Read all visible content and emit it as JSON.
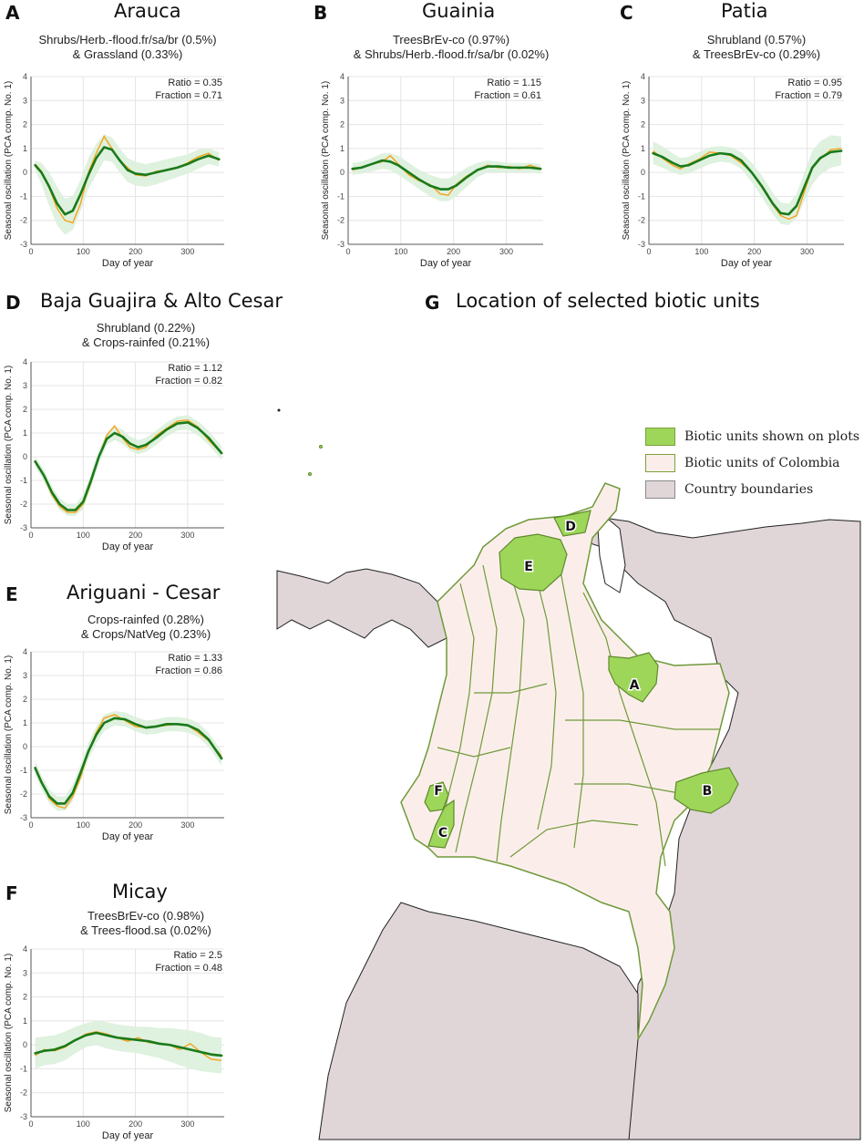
{
  "panels": [
    {
      "id": "A",
      "letter": "A",
      "title": "Arauca",
      "subtitle_line1": "Shrubs/Herb.-flood.fr/sa/br (0.5%)",
      "subtitle_line2": "& Grassland (0.33%)",
      "ratio_text": "Ratio  = 0.35",
      "fraction_text": "Fraction = 0.71"
    },
    {
      "id": "B",
      "letter": "B",
      "title": "Guainia",
      "subtitle_line1": "TreesBrEv-co (0.97%)",
      "subtitle_line2": "& Shrubs/Herb.-flood.fr/sa/br (0.02%)",
      "ratio_text": "Ratio  = 1.15",
      "fraction_text": "Fraction = 0.61"
    },
    {
      "id": "C",
      "letter": "C",
      "title": "Patia",
      "subtitle_line1": "Shrubland (0.57%)",
      "subtitle_line2": "& TreesBrEv-co (0.29%)",
      "ratio_text": "Ratio  = 0.95",
      "fraction_text": "Fraction = 0.79"
    },
    {
      "id": "D",
      "letter": "D",
      "title": "Baja Guajira & Alto Cesar",
      "subtitle_line1": "Shrubland (0.22%)",
      "subtitle_line2": "& Crops-rainfed (0.21%)",
      "ratio_text": "Ratio  = 1.12",
      "fraction_text": "Fraction = 0.82"
    },
    {
      "id": "E",
      "letter": "E",
      "title": "Ariguani - Cesar",
      "subtitle_line1": "Crops-rainfed (0.28%)",
      "subtitle_line2": "& Crops/NatVeg (0.23%)",
      "ratio_text": "Ratio  = 1.33",
      "fraction_text": "Fraction = 0.86"
    },
    {
      "id": "F",
      "letter": "F",
      "title": "Micay",
      "subtitle_line1": "TreesBrEv-co (0.98%)",
      "subtitle_line2": "& Trees-flood.sa (0.02%)",
      "ratio_text": "Ratio  = 2.5",
      "fraction_text": "Fraction = 0.48"
    }
  ],
  "axis_text": {
    "ylabel": "Seasonal oscillation (PCA comp. No. 1)",
    "xlabel": "Day of year",
    "xticks": [
      "0",
      "100",
      "200",
      "300"
    ],
    "yticks": [
      "4",
      "3",
      "2",
      "1",
      "0",
      "-1",
      "-2",
      "-3"
    ]
  },
  "map": {
    "letter": "G",
    "title": "Location of selected biotic units",
    "legend": [
      {
        "label": "Biotic units shown on plots",
        "color": "#9ed65a"
      },
      {
        "label": "Biotic units of Colombia",
        "color": "#fbeeea"
      },
      {
        "label": "Country boundaries",
        "color": "#e0d6d8"
      }
    ],
    "unit_labels": [
      "A",
      "B",
      "C",
      "D",
      "E",
      "F"
    ]
  },
  "colors": {
    "smooth_line": "#1a7a1a",
    "raw_line": "#f5a31a",
    "band": "#dcefdc",
    "unit_highlight": "#9ed65a",
    "unit_fill": "#fbeeea",
    "border": "#6f9a3a",
    "country": "#e0d6d8"
  },
  "chart_data": [
    {
      "type": "line",
      "panel": "A",
      "xlabel": "Day of year",
      "ylabel": "Seasonal oscillation (PCA comp. No. 1)",
      "xlim": [
        0,
        370
      ],
      "ylim": [
        -3,
        4
      ],
      "grid": true,
      "x": [
        8,
        20,
        35,
        50,
        65,
        80,
        95,
        110,
        125,
        140,
        155,
        170,
        185,
        200,
        220,
        240,
        260,
        280,
        300,
        320,
        340,
        360
      ],
      "series": [
        {
          "role": "smooth",
          "values": [
            0.3,
            0.0,
            -0.6,
            -1.3,
            -1.75,
            -1.6,
            -0.9,
            -0.1,
            0.6,
            1.05,
            0.95,
            0.5,
            0.1,
            -0.05,
            -0.1,
            0.0,
            0.1,
            0.2,
            0.35,
            0.55,
            0.7,
            0.55
          ]
        },
        {
          "role": "raw",
          "values": [
            0.35,
            0.05,
            -0.65,
            -1.5,
            -2.0,
            -2.1,
            -1.3,
            0.0,
            0.8,
            1.5,
            1.0,
            0.5,
            0.2,
            -0.1,
            -0.15,
            0.05,
            0.1,
            0.2,
            0.4,
            0.65,
            0.8,
            0.5
          ]
        },
        {
          "role": "band_upper",
          "values": [
            0.5,
            0.4,
            0.0,
            -0.6,
            -1.1,
            -1.0,
            -0.3,
            0.6,
            1.2,
            1.6,
            1.45,
            1.0,
            0.6,
            0.45,
            0.35,
            0.45,
            0.55,
            0.65,
            0.75,
            0.95,
            1.0,
            0.85
          ]
        },
        {
          "role": "band_lower",
          "values": [
            0.1,
            -0.5,
            -1.4,
            -2.2,
            -2.6,
            -2.4,
            -1.6,
            -0.7,
            -0.1,
            0.5,
            0.45,
            0.0,
            -0.4,
            -0.55,
            -0.6,
            -0.5,
            -0.35,
            -0.2,
            -0.05,
            0.15,
            0.35,
            0.25
          ]
        }
      ]
    },
    {
      "type": "line",
      "panel": "B",
      "xlabel": "Day of year",
      "ylabel": "Seasonal oscillation (PCA comp. No. 1)",
      "xlim": [
        0,
        370
      ],
      "ylim": [
        -3,
        4
      ],
      "grid": true,
      "x": [
        8,
        25,
        45,
        65,
        80,
        95,
        115,
        135,
        155,
        175,
        190,
        205,
        225,
        245,
        265,
        285,
        305,
        325,
        345,
        365
      ],
      "series": [
        {
          "role": "smooth",
          "values": [
            0.15,
            0.2,
            0.35,
            0.5,
            0.45,
            0.3,
            0.0,
            -0.3,
            -0.55,
            -0.7,
            -0.7,
            -0.55,
            -0.2,
            0.1,
            0.25,
            0.25,
            0.2,
            0.2,
            0.2,
            0.15
          ]
        },
        {
          "role": "raw",
          "values": [
            0.1,
            0.2,
            0.35,
            0.45,
            0.7,
            0.35,
            -0.1,
            -0.35,
            -0.5,
            -0.9,
            -0.95,
            -0.5,
            -0.15,
            0.1,
            0.3,
            0.2,
            0.25,
            0.15,
            0.3,
            0.15
          ]
        },
        {
          "role": "band_upper",
          "values": [
            0.4,
            0.45,
            0.6,
            0.8,
            0.8,
            0.7,
            0.4,
            0.1,
            -0.1,
            -0.25,
            -0.25,
            -0.1,
            0.2,
            0.4,
            0.5,
            0.45,
            0.4,
            0.4,
            0.4,
            0.35
          ]
        },
        {
          "role": "band_lower",
          "values": [
            -0.1,
            -0.05,
            0.05,
            0.15,
            0.1,
            -0.1,
            -0.4,
            -0.7,
            -1.0,
            -1.2,
            -1.2,
            -1.0,
            -0.6,
            -0.2,
            0.0,
            0.0,
            0.0,
            0.0,
            0.0,
            -0.05
          ]
        }
      ]
    },
    {
      "type": "line",
      "panel": "C",
      "xlabel": "Day of year",
      "ylabel": "Seasonal oscillation (PCA comp. No. 1)",
      "xlim": [
        0,
        370
      ],
      "ylim": [
        -3,
        4
      ],
      "grid": true,
      "x": [
        8,
        25,
        45,
        60,
        75,
        95,
        115,
        135,
        155,
        175,
        195,
        215,
        235,
        250,
        265,
        280,
        295,
        310,
        325,
        345,
        365
      ],
      "series": [
        {
          "role": "smooth",
          "values": [
            0.8,
            0.65,
            0.4,
            0.25,
            0.3,
            0.5,
            0.7,
            0.8,
            0.75,
            0.5,
            0.0,
            -0.6,
            -1.3,
            -1.7,
            -1.75,
            -1.4,
            -0.6,
            0.2,
            0.6,
            0.85,
            0.9
          ]
        },
        {
          "role": "raw",
          "values": [
            0.9,
            0.6,
            0.3,
            0.15,
            0.35,
            0.55,
            0.85,
            0.8,
            0.7,
            0.4,
            0.0,
            -0.65,
            -1.35,
            -1.8,
            -1.95,
            -1.8,
            -0.8,
            0.2,
            0.55,
            0.95,
            1.0
          ]
        },
        {
          "role": "band_upper",
          "values": [
            1.3,
            1.1,
            0.8,
            0.6,
            0.65,
            0.85,
            1.05,
            1.1,
            1.05,
            0.85,
            0.4,
            -0.15,
            -0.85,
            -1.25,
            -1.3,
            -0.9,
            0.0,
            0.9,
            1.3,
            1.55,
            1.5
          ]
        },
        {
          "role": "band_lower",
          "values": [
            0.35,
            0.2,
            0.0,
            -0.1,
            -0.05,
            0.15,
            0.35,
            0.45,
            0.4,
            0.15,
            -0.4,
            -1.05,
            -1.75,
            -2.15,
            -2.2,
            -1.9,
            -1.2,
            -0.5,
            -0.1,
            0.2,
            0.3
          ]
        }
      ]
    },
    {
      "type": "line",
      "panel": "D",
      "xlabel": "Day of year",
      "ylabel": "Seasonal oscillation (PCA comp. No. 1)",
      "xlim": [
        0,
        370
      ],
      "ylim": [
        -3,
        4
      ],
      "grid": true,
      "x": [
        8,
        25,
        40,
        55,
        70,
        85,
        100,
        115,
        130,
        145,
        160,
        175,
        190,
        205,
        220,
        240,
        260,
        280,
        300,
        320,
        340,
        365
      ],
      "series": [
        {
          "role": "smooth",
          "values": [
            -0.2,
            -0.8,
            -1.5,
            -2.0,
            -2.25,
            -2.25,
            -1.9,
            -1.0,
            0.0,
            0.75,
            1.0,
            0.85,
            0.55,
            0.4,
            0.5,
            0.8,
            1.15,
            1.4,
            1.45,
            1.2,
            0.8,
            0.15
          ]
        },
        {
          "role": "raw",
          "values": [
            -0.15,
            -0.85,
            -1.6,
            -2.1,
            -2.35,
            -2.35,
            -2.0,
            -1.1,
            0.0,
            0.9,
            1.3,
            0.8,
            0.4,
            0.3,
            0.4,
            0.9,
            1.2,
            1.5,
            1.55,
            1.25,
            0.7,
            0.15
          ]
        },
        {
          "role": "band_upper",
          "values": [
            0.0,
            -0.55,
            -1.25,
            -1.75,
            -2.0,
            -2.0,
            -1.6,
            -0.7,
            0.3,
            1.0,
            1.3,
            1.15,
            0.85,
            0.7,
            0.8,
            1.1,
            1.45,
            1.7,
            1.75,
            1.5,
            1.1,
            0.45
          ]
        },
        {
          "role": "band_lower",
          "values": [
            -0.4,
            -1.05,
            -1.75,
            -2.25,
            -2.5,
            -2.5,
            -2.2,
            -1.3,
            -0.3,
            0.5,
            0.7,
            0.55,
            0.25,
            0.1,
            0.2,
            0.5,
            0.85,
            1.1,
            1.15,
            0.9,
            0.5,
            -0.15
          ]
        }
      ]
    },
    {
      "type": "line",
      "panel": "E",
      "xlabel": "Day of year",
      "ylabel": "Seasonal oscillation (PCA comp. No. 1)",
      "xlim": [
        0,
        370
      ],
      "ylim": [
        -3,
        4
      ],
      "grid": true,
      "x": [
        8,
        20,
        35,
        50,
        65,
        80,
        95,
        110,
        125,
        140,
        160,
        180,
        200,
        220,
        240,
        260,
        280,
        300,
        320,
        340,
        365
      ],
      "series": [
        {
          "role": "smooth",
          "values": [
            -0.9,
            -1.5,
            -2.1,
            -2.4,
            -2.4,
            -1.95,
            -1.1,
            -0.2,
            0.5,
            1.0,
            1.2,
            1.15,
            0.95,
            0.8,
            0.85,
            0.95,
            0.95,
            0.9,
            0.7,
            0.3,
            -0.5
          ]
        },
        {
          "role": "raw",
          "values": [
            -0.85,
            -1.45,
            -2.2,
            -2.5,
            -2.6,
            -2.1,
            -1.3,
            -0.2,
            0.6,
            1.2,
            1.35,
            1.1,
            0.85,
            0.8,
            0.85,
            0.9,
            0.95,
            0.9,
            0.6,
            0.25,
            -0.4
          ]
        },
        {
          "role": "band_upper",
          "values": [
            -0.6,
            -1.2,
            -1.8,
            -2.1,
            -2.1,
            -1.6,
            -0.75,
            0.15,
            0.85,
            1.35,
            1.5,
            1.45,
            1.25,
            1.1,
            1.15,
            1.25,
            1.25,
            1.2,
            1.0,
            0.6,
            -0.2
          ]
        },
        {
          "role": "band_lower",
          "values": [
            -1.2,
            -1.8,
            -2.4,
            -2.7,
            -2.7,
            -2.3,
            -1.45,
            -0.55,
            0.15,
            0.65,
            0.9,
            0.85,
            0.65,
            0.5,
            0.55,
            0.65,
            0.65,
            0.6,
            0.4,
            0.0,
            -0.8
          ]
        }
      ]
    },
    {
      "type": "line",
      "panel": "F",
      "xlabel": "Day of year",
      "ylabel": "Seasonal oscillation (PCA comp. No. 1)",
      "xlim": [
        0,
        370
      ],
      "ylim": [
        -3,
        4
      ],
      "grid": true,
      "x": [
        8,
        25,
        45,
        65,
        85,
        105,
        125,
        145,
        165,
        185,
        205,
        225,
        245,
        265,
        285,
        305,
        325,
        345,
        365
      ],
      "series": [
        {
          "role": "smooth",
          "values": [
            -0.35,
            -0.25,
            -0.2,
            -0.05,
            0.2,
            0.4,
            0.5,
            0.4,
            0.3,
            0.25,
            0.2,
            0.15,
            0.05,
            0.0,
            -0.1,
            -0.2,
            -0.3,
            -0.4,
            -0.45
          ]
        },
        {
          "role": "raw",
          "values": [
            -0.45,
            -0.2,
            -0.25,
            -0.1,
            0.2,
            0.45,
            0.55,
            0.45,
            0.3,
            0.15,
            0.3,
            0.1,
            0.05,
            0.0,
            -0.2,
            0.05,
            -0.3,
            -0.6,
            -0.65
          ]
        },
        {
          "role": "band_upper",
          "values": [
            0.3,
            0.35,
            0.4,
            0.55,
            0.75,
            0.9,
            1.0,
            0.95,
            0.85,
            0.8,
            0.75,
            0.75,
            0.7,
            0.7,
            0.65,
            0.6,
            0.5,
            0.35,
            0.3
          ]
        },
        {
          "role": "band_lower",
          "values": [
            -1.0,
            -0.85,
            -0.8,
            -0.65,
            -0.35,
            -0.1,
            0.0,
            -0.15,
            -0.25,
            -0.3,
            -0.35,
            -0.45,
            -0.55,
            -0.7,
            -0.85,
            -1.0,
            -1.1,
            -1.15,
            -1.2
          ]
        }
      ]
    }
  ]
}
